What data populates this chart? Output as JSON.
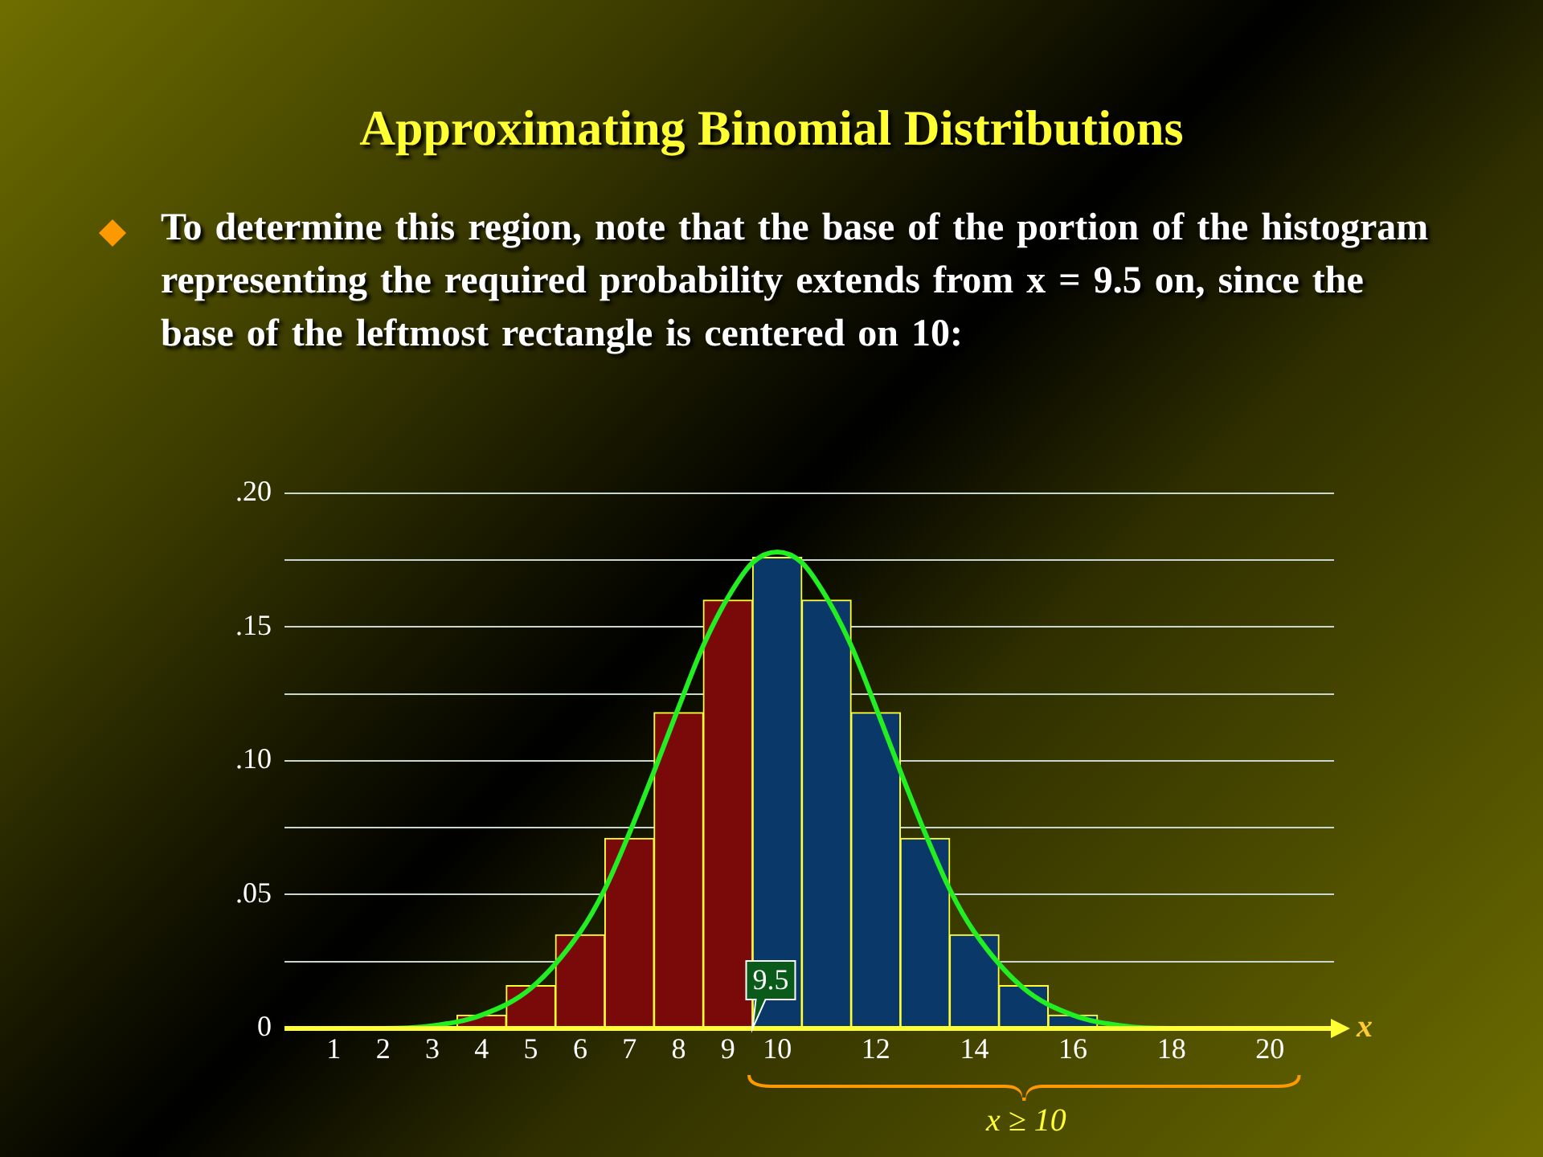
{
  "chart_data": {
    "type": "histogram",
    "title": "Approximating Binomial Distributions",
    "subtitle": "To determine this region, note that the base of the portion of the histogram representing the required probability extends from x = 9.5 on, since the base of the leftmost rectangle is centered on 10:",
    "xlabel": "x",
    "bins": [
      3.5,
      4.5,
      5.5,
      6.5,
      7.5,
      8.5,
      9.5,
      10.5,
      11.5,
      12.5,
      13.5,
      14.5,
      15.5,
      16.5
    ],
    "values": [
      0.005,
      0.016,
      0.035,
      0.071,
      0.118,
      0.16,
      0.176,
      0.16,
      0.118,
      0.071,
      0.035,
      0.016,
      0.005
    ],
    "colors": [
      "#7a0a0a",
      "#7a0a0a",
      "#7a0a0a",
      "#7a0a0a",
      "#7a0a0a",
      "#7a0a0a",
      "#0a3868",
      "#0a3868",
      "#0a3868",
      "#0a3868",
      "#0a3868",
      "#0a3868",
      "#0a3868"
    ],
    "series": [
      {
        "type": "line",
        "color": "#22ee22",
        "x": [
          0.3,
          1,
          2,
          3,
          4,
          5,
          6,
          6.5,
          7,
          7.5,
          8,
          8.5,
          9,
          9.5,
          10,
          10.5,
          11,
          11.5,
          12,
          12.5,
          13,
          13.5,
          14,
          15,
          16,
          17,
          18,
          19,
          20
        ],
        "values": [
          0,
          0,
          0,
          0.001,
          0.005,
          0.015,
          0.036,
          0.052,
          0.073,
          0.096,
          0.12,
          0.143,
          0.161,
          0.174,
          0.178,
          0.174,
          0.161,
          0.143,
          0.12,
          0.096,
          0.073,
          0.052,
          0.036,
          0.015,
          0.005,
          0.001,
          0,
          0,
          0
        ]
      }
    ],
    "xlim": [
      0,
      21.3
    ],
    "xticks": [
      1,
      2,
      3,
      4,
      5,
      6,
      7,
      8,
      9,
      10,
      12,
      14,
      16,
      18,
      20
    ],
    "ylim": [
      0,
      0.2
    ],
    "yticks": [
      {
        "value": 0,
        "label": "0"
      },
      {
        "value": 0.025,
        "label": null
      },
      {
        "value": 0.05,
        "label": ".05"
      },
      {
        "value": 0.075,
        "label": null
      },
      {
        "value": 0.1,
        "label": ".10"
      },
      {
        "value": 0.125,
        "label": null
      },
      {
        "value": 0.15,
        "label": ".15"
      },
      {
        "value": 0.175,
        "label": null
      },
      {
        "value": 0.2,
        "label": ".20"
      }
    ],
    "grid": "y",
    "legend": false,
    "annotations": [
      {
        "text": "9.5",
        "x": 9.5,
        "y": 0
      },
      "x ≥ 10"
    ]
  }
}
